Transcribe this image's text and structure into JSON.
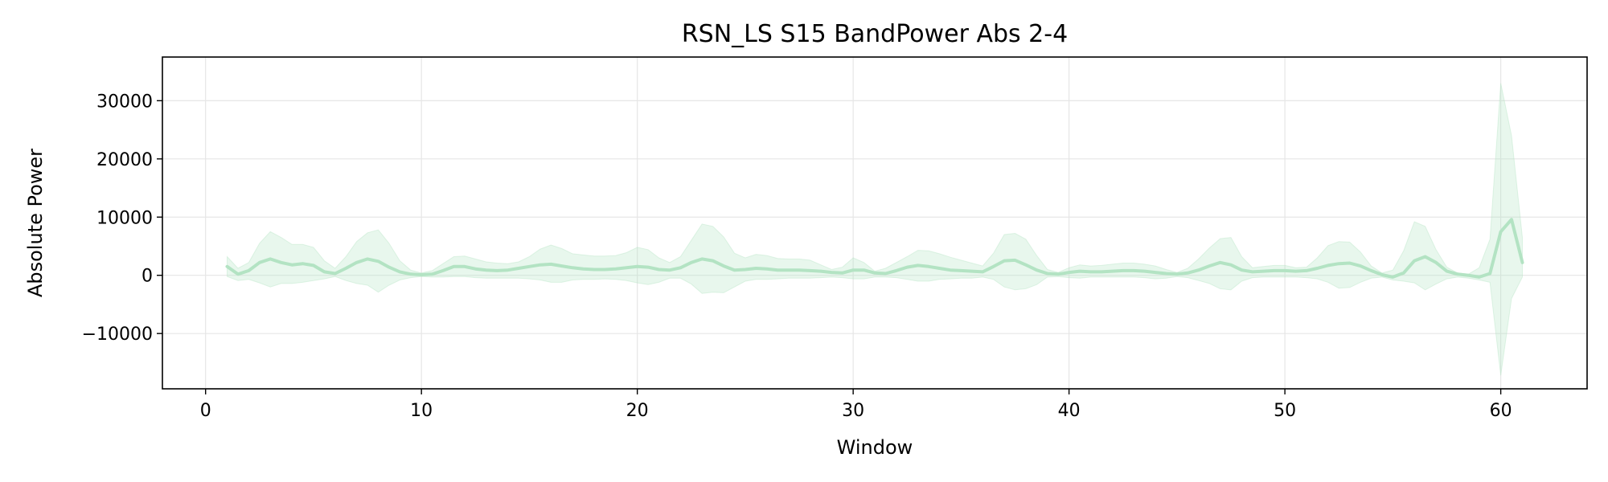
{
  "chart_data": {
    "type": "line",
    "title": "RSN_LS S15 BandPower Abs 2-4",
    "xlabel": "Window",
    "ylabel": "Absolute Power",
    "xlim": [
      -2,
      64
    ],
    "ylim": [
      -19500,
      37500
    ],
    "xticks": [
      0,
      10,
      20,
      30,
      40,
      50,
      60
    ],
    "yticks": [
      -10000,
      0,
      10000,
      20000,
      30000
    ],
    "ytick_labels": [
      "−10000",
      "0",
      "10000",
      "20000",
      "30000"
    ],
    "grid": true,
    "legend": "none",
    "colors": {
      "line": "#b3e3c3",
      "band": "#b3e3c3",
      "grid": "#e6e6e6",
      "axis": "#000000"
    },
    "series": [
      {
        "x": [
          1,
          1.5,
          2,
          2.5,
          3,
          3.5,
          4,
          4.5,
          5,
          5.5,
          6,
          6.5,
          7,
          7.5,
          8,
          8.5,
          9,
          9.5,
          10,
          10.5,
          11,
          11.5,
          12,
          12.5,
          13,
          13.5,
          14,
          14.5,
          15,
          15.5,
          16,
          16.5,
          17,
          17.5,
          18,
          18.5,
          19,
          19.5,
          20,
          20.5,
          21,
          21.5,
          22,
          22.5,
          23,
          23.5,
          24,
          24.5,
          25,
          25.5,
          26,
          26.5,
          27,
          27.5,
          28,
          28.5,
          29,
          29.5,
          30,
          30.5,
          31,
          31.5,
          32,
          32.5,
          33,
          33.5,
          34,
          34.5,
          35,
          35.5,
          36,
          36.5,
          37,
          37.5,
          38,
          38.5,
          39,
          39.5,
          40,
          40.5,
          41,
          41.5,
          42,
          42.5,
          43,
          43.5,
          44,
          44.5,
          45,
          45.5,
          46,
          46.5,
          47,
          47.5,
          48,
          48.5,
          49,
          49.5,
          50,
          50.5,
          51,
          51.5,
          52,
          52.5,
          53,
          53.5,
          54,
          54.5,
          55,
          55.5,
          56,
          56.5,
          57,
          57.5,
          58,
          58.5,
          59,
          59.5,
          60,
          60.5,
          61
        ],
        "mean": [
          1500,
          200,
          800,
          2200,
          2800,
          2200,
          1800,
          2000,
          1700,
          600,
          300,
          1200,
          2200,
          2800,
          2400,
          1400,
          600,
          200,
          100,
          200,
          800,
          1500,
          1500,
          1100,
          900,
          800,
          900,
          1200,
          1500,
          1800,
          1900,
          1600,
          1300,
          1100,
          1000,
          1000,
          1100,
          1300,
          1500,
          1400,
          1000,
          900,
          1300,
          2200,
          2800,
          2500,
          1600,
          900,
          1000,
          1200,
          1100,
          900,
          900,
          900,
          800,
          700,
          500,
          400,
          900,
          900,
          400,
          300,
          800,
          1400,
          1700,
          1500,
          1200,
          900,
          800,
          700,
          600,
          1500,
          2500,
          2600,
          1800,
          900,
          300,
          200,
          500,
          700,
          600,
          600,
          700,
          800,
          800,
          700,
          500,
          300,
          200,
          400,
          900,
          1600,
          2200,
          1800,
          900,
          600,
          700,
          800,
          800,
          700,
          800,
          1200,
          1700,
          2000,
          2100,
          1600,
          800,
          100,
          -300,
          400,
          2500,
          3200,
          2200,
          700,
          200,
          0,
          -300,
          300,
          7500,
          9600,
          2200
        ],
        "upper": [
          3200,
          1200,
          2200,
          5500,
          7500,
          6500,
          5300,
          5300,
          4800,
          2500,
          1200,
          3200,
          5800,
          7300,
          7800,
          5500,
          2500,
          900,
          400,
          800,
          2000,
          3200,
          3300,
          2800,
          2300,
          2100,
          2000,
          2300,
          3200,
          4500,
          5200,
          4600,
          3700,
          3500,
          3300,
          3300,
          3400,
          3900,
          4800,
          4400,
          3000,
          2200,
          3200,
          6000,
          8800,
          8400,
          6600,
          3800,
          3000,
          3600,
          3400,
          2900,
          2800,
          2800,
          2600,
          1800,
          1000,
          1400,
          3000,
          2200,
          700,
          1200,
          2200,
          3200,
          4300,
          4200,
          3700,
          3100,
          2600,
          2100,
          1600,
          3800,
          7000,
          7200,
          6200,
          3400,
          1000,
          500,
          1300,
          1800,
          1600,
          1700,
          1900,
          2100,
          2100,
          1900,
          1600,
          1000,
          500,
          1200,
          2800,
          4700,
          6300,
          6500,
          3200,
          1300,
          1500,
          1700,
          1700,
          1300,
          1400,
          3000,
          5100,
          5800,
          5700,
          4000,
          1600,
          400,
          900,
          4200,
          9200,
          8400,
          4400,
          1400,
          400,
          200,
          1300,
          6200,
          33000,
          24000,
          6500
        ],
        "lower": [
          -200,
          -900,
          -700,
          -1300,
          -2000,
          -1400,
          -1400,
          -1200,
          -900,
          -600,
          -200,
          -900,
          -1400,
          -1700,
          -2900,
          -1700,
          -800,
          -400,
          -200,
          -300,
          -300,
          -200,
          -200,
          -400,
          -500,
          -500,
          -500,
          -500,
          -600,
          -800,
          -1200,
          -1200,
          -800,
          -700,
          -700,
          -600,
          -700,
          -900,
          -1300,
          -1600,
          -1200,
          -500,
          -500,
          -1500,
          -3100,
          -2900,
          -3000,
          -2000,
          -1000,
          -700,
          -700,
          -600,
          -500,
          -500,
          -500,
          -400,
          -300,
          -400,
          -600,
          -600,
          -300,
          -300,
          -400,
          -700,
          -1000,
          -1000,
          -700,
          -600,
          -500,
          -500,
          -300,
          -700,
          -2000,
          -2500,
          -2300,
          -1600,
          -300,
          -200,
          -400,
          -500,
          -300,
          -300,
          -300,
          -300,
          -300,
          -400,
          -600,
          -500,
          -200,
          -400,
          -900,
          -1400,
          -2300,
          -2500,
          -1000,
          -400,
          -300,
          -300,
          -300,
          -300,
          -400,
          -600,
          -1200,
          -2200,
          -2100,
          -1200,
          -500,
          -300,
          -800,
          -1000,
          -1300,
          -2500,
          -1500,
          -600,
          -300,
          -500,
          -800,
          -1200,
          -17200,
          -4000,
          -300
        ]
      }
    ]
  }
}
